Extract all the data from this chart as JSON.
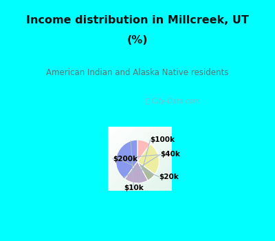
{
  "title_line1": "Income distribution in Millcreek, UT",
  "title_line2": "(%)",
  "subtitle": "American Indian and Alaska Native residents",
  "labels": [
    "$200k",
    "$100k",
    "$40k",
    "$20k",
    "$10k"
  ],
  "values": [
    40,
    18,
    7,
    25,
    10
  ],
  "colors": [
    "#8899ee",
    "#bbaacc",
    "#aabb99",
    "#eeeea0",
    "#ffbbbb"
  ],
  "bg_cyan": "#00ffff",
  "bg_chart_tl": "#f0fff8",
  "bg_chart_br": "#d8eee8",
  "title_color": "#111111",
  "subtitle_color": "#557777",
  "watermark": "City-Data.com",
  "startangle": 90
}
